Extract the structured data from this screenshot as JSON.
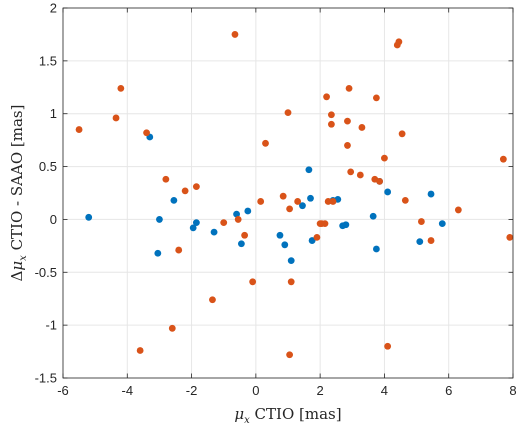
{
  "chart_data": {
    "type": "scatter",
    "xlabel_math": "μ",
    "xlabel_sub": "x",
    "xlabel_rest": " CTIO [mas]",
    "ylabel_delta": "Δ",
    "ylabel_math": "μ",
    "ylabel_sub": "x",
    "ylabel_rest": " CTIO - SAAO [mas]",
    "xlim": [
      -6,
      8
    ],
    "ylim": [
      -1.5,
      2
    ],
    "xticks": [
      -6,
      -4,
      -2,
      0,
      2,
      4,
      6,
      8
    ],
    "yticks": [
      -1.5,
      -1,
      -0.5,
      0,
      0.5,
      1,
      1.5,
      2
    ],
    "xtick_labels": [
      "-6",
      "-4",
      "-2",
      "0",
      "2",
      "4",
      "6",
      "8"
    ],
    "ytick_labels": [
      "-1.5",
      "-1",
      "-0.5",
      "0",
      "0.5",
      "1",
      "1.5",
      "2"
    ],
    "grid": true,
    "series": [
      {
        "color": "#0072BD",
        "points": [
          [
            -5.2,
            0.02
          ],
          [
            -3.3,
            0.78
          ],
          [
            -3.05,
            -0.32
          ],
          [
            -3.0,
            0.0
          ],
          [
            -2.55,
            0.18
          ],
          [
            -1.95,
            -0.08
          ],
          [
            -1.85,
            -0.03
          ],
          [
            -1.3,
            -0.12
          ],
          [
            -0.6,
            0.05
          ],
          [
            -0.45,
            -0.23
          ],
          [
            -0.25,
            0.08
          ],
          [
            0.75,
            -0.15
          ],
          [
            0.9,
            -0.24
          ],
          [
            1.1,
            -0.39
          ],
          [
            1.45,
            0.13
          ],
          [
            1.65,
            0.47
          ],
          [
            1.7,
            0.2
          ],
          [
            1.75,
            -0.2
          ],
          [
            2.4,
            0.18
          ],
          [
            2.55,
            0.19
          ],
          [
            2.7,
            -0.06
          ],
          [
            2.8,
            -0.05
          ],
          [
            3.65,
            0.03
          ],
          [
            3.75,
            -0.28
          ],
          [
            3.85,
            0.36
          ],
          [
            4.1,
            0.26
          ],
          [
            5.1,
            -0.21
          ],
          [
            5.45,
            0.24
          ],
          [
            5.8,
            -0.04
          ]
        ]
      },
      {
        "color": "#D95319",
        "points": [
          [
            -5.5,
            0.85
          ],
          [
            -4.35,
            0.96
          ],
          [
            -4.2,
            1.24
          ],
          [
            -3.4,
            0.82
          ],
          [
            -3.6,
            -1.24
          ],
          [
            -2.8,
            0.38
          ],
          [
            -2.6,
            -1.03
          ],
          [
            -2.4,
            -0.29
          ],
          [
            -2.2,
            0.27
          ],
          [
            -1.85,
            0.31
          ],
          [
            -1.35,
            -0.76
          ],
          [
            -1.0,
            -0.03
          ],
          [
            -0.65,
            1.75
          ],
          [
            -0.55,
            0.0
          ],
          [
            -0.35,
            -0.15
          ],
          [
            -0.1,
            -0.59
          ],
          [
            0.15,
            0.17
          ],
          [
            0.3,
            0.72
          ],
          [
            0.85,
            0.22
          ],
          [
            1.0,
            1.01
          ],
          [
            1.05,
            0.1
          ],
          [
            1.05,
            -1.28
          ],
          [
            1.1,
            -0.59
          ],
          [
            1.3,
            0.17
          ],
          [
            1.9,
            -0.17
          ],
          [
            2.0,
            -0.04
          ],
          [
            2.05,
            -0.04
          ],
          [
            2.15,
            -0.04
          ],
          [
            2.2,
            1.16
          ],
          [
            2.25,
            0.17
          ],
          [
            2.35,
            0.9
          ],
          [
            2.35,
            0.99
          ],
          [
            2.4,
            0.17
          ],
          [
            2.85,
            0.7
          ],
          [
            2.85,
            0.93
          ],
          [
            2.9,
            1.24
          ],
          [
            2.95,
            0.45
          ],
          [
            3.25,
            0.42
          ],
          [
            3.3,
            0.87
          ],
          [
            3.7,
            0.38
          ],
          [
            3.75,
            1.15
          ],
          [
            3.85,
            0.36
          ],
          [
            4.0,
            0.58
          ],
          [
            4.1,
            -1.2
          ],
          [
            4.4,
            1.65
          ],
          [
            4.45,
            1.68
          ],
          [
            4.55,
            0.81
          ],
          [
            4.65,
            0.18
          ],
          [
            5.15,
            -0.02
          ],
          [
            5.45,
            -0.2
          ],
          [
            6.3,
            0.09
          ],
          [
            7.7,
            0.57
          ],
          [
            7.9,
            -0.17
          ]
        ]
      }
    ]
  }
}
